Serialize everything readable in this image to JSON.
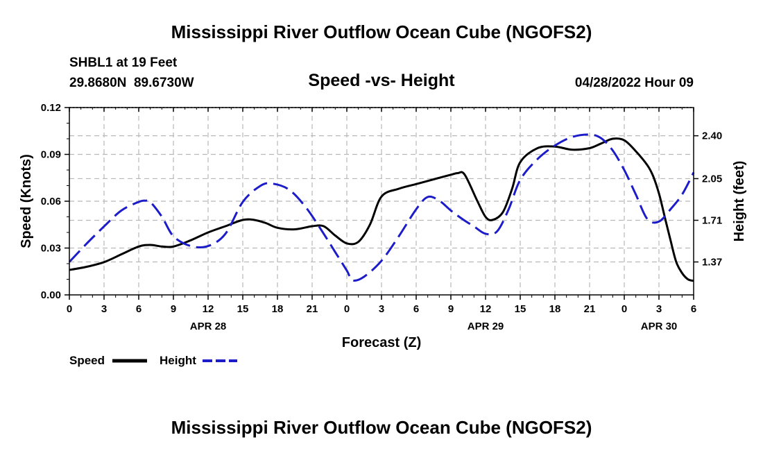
{
  "titles": {
    "main": "Mississippi River Outflow Ocean Cube (NGOFS2)",
    "station": "SHBL1 at 19 Feet",
    "coords": "29.8680N  89.6730W",
    "datetime": "04/28/2022 Hour 09",
    "footer": "Mississippi River Outflow Ocean Cube (NGOFS2)"
  },
  "colors": {
    "speed": "#000000",
    "height": "#1c1cc8",
    "grid": "#b8b8b8"
  },
  "chart_data": {
    "type": "line",
    "title": "Speed -vs- Height",
    "xlabel": "Forecast (Z)",
    "ylabel": "Speed (Knots)",
    "ylabel_right": "Height (feet)",
    "x_range": [
      0,
      54
    ],
    "ylim": [
      0,
      0.12
    ],
    "ylim_right": [
      1.1012,
      2.6302
    ],
    "x_ticks": [
      0,
      3,
      6,
      9,
      12,
      15,
      18,
      21,
      24,
      27,
      30,
      33,
      36,
      39,
      42,
      45,
      48,
      51,
      54
    ],
    "x_tick_labels": [
      "0",
      "3",
      "6",
      "9",
      "12",
      "15",
      "18",
      "21",
      "0",
      "3",
      "6",
      "9",
      "12",
      "15",
      "18",
      "21",
      "0",
      "3",
      "6"
    ],
    "date_labels": [
      {
        "text": "APR 28",
        "at": 12
      },
      {
        "text": "APR 29",
        "at": 36
      },
      {
        "text": "APR 30",
        "at": 51
      }
    ],
    "y_ticks": [
      0,
      0.03,
      0.06,
      0.09,
      0.12
    ],
    "y_tick_labels": [
      "0.00",
      "0.03",
      "0.06",
      "0.09",
      "0.12"
    ],
    "y_ticks_right": [
      1.37,
      1.71,
      2.05,
      2.4
    ],
    "y_tick_labels_right": [
      "1.37",
      "1.71",
      "2.05",
      "2.40"
    ],
    "series": [
      {
        "name": "Speed",
        "axis": "left",
        "style": "solid",
        "x": [
          0,
          1.5,
          3,
          4.5,
          6,
          7,
          8,
          9,
          10.5,
          12,
          13.5,
          15,
          16,
          17,
          18,
          19.5,
          21,
          22,
          23,
          24,
          25,
          26,
          27,
          28.5,
          30,
          31.5,
          33,
          33.6,
          34.2,
          35.3,
          36,
          36.6,
          37.5,
          38.3,
          39,
          40.5,
          42,
          43.5,
          45,
          46,
          47,
          48,
          49,
          50,
          50.5,
          51,
          51.5,
          52,
          52.5,
          53,
          53.5,
          54
        ],
        "values": [
          0.016,
          0.018,
          0.021,
          0.026,
          0.031,
          0.032,
          0.031,
          0.031,
          0.035,
          0.04,
          0.044,
          0.048,
          0.048,
          0.046,
          0.043,
          0.042,
          0.044,
          0.044,
          0.038,
          0.033,
          0.034,
          0.045,
          0.063,
          0.068,
          0.071,
          0.074,
          0.077,
          0.078,
          0.077,
          0.06,
          0.05,
          0.048,
          0.053,
          0.068,
          0.085,
          0.094,
          0.095,
          0.093,
          0.094,
          0.097,
          0.1,
          0.099,
          0.092,
          0.083,
          0.076,
          0.065,
          0.05,
          0.035,
          0.021,
          0.014,
          0.01,
          0.009
        ]
      },
      {
        "name": "Height",
        "axis": "right",
        "style": "dashed",
        "x": [
          0,
          1.5,
          3,
          4.5,
          6,
          6.6,
          7,
          8,
          9,
          10.5,
          12,
          13.5,
          15,
          16.5,
          17.5,
          19,
          20.5,
          22,
          23,
          24,
          24.5,
          25.5,
          27,
          28.5,
          30,
          31,
          32,
          33,
          34,
          35,
          36,
          37,
          38,
          39,
          40.5,
          42,
          43.5,
          45,
          46,
          47,
          48,
          49,
          50,
          51,
          52,
          53,
          54
        ],
        "values": [
          1.37,
          1.52,
          1.66,
          1.79,
          1.86,
          1.87,
          1.86,
          1.74,
          1.58,
          1.5,
          1.5,
          1.6,
          1.86,
          1.99,
          2.01,
          1.96,
          1.81,
          1.6,
          1.45,
          1.3,
          1.22,
          1.25,
          1.38,
          1.58,
          1.8,
          1.9,
          1.87,
          1.79,
          1.72,
          1.66,
          1.6,
          1.62,
          1.8,
          2.04,
          2.21,
          2.32,
          2.39,
          2.41,
          2.38,
          2.28,
          2.12,
          1.92,
          1.72,
          1.7,
          1.8,
          1.92,
          2.1
        ]
      }
    ],
    "legend": [
      {
        "label": "Speed",
        "style": "solid"
      },
      {
        "label": "Height",
        "style": "dashed"
      }
    ]
  }
}
